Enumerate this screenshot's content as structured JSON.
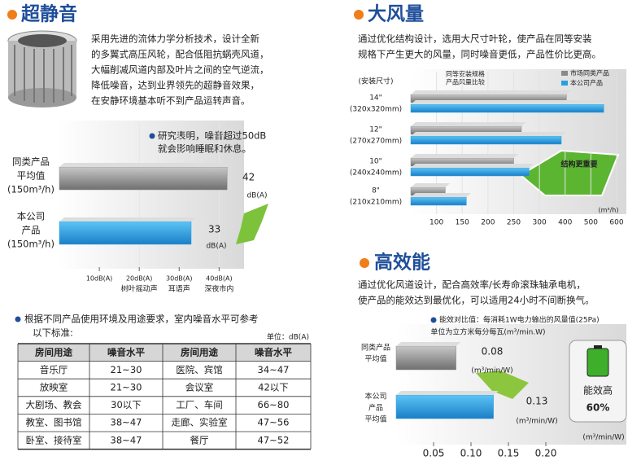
{
  "sections": {
    "quiet": {
      "heading": "超静音",
      "paragraph": [
        "采用先进的流体力学分析技术，设计全新",
        "的多翼式高压风轮，配合低阻抗蜗壳风道，",
        "大幅削减风道内部及叶片之间的空气逆流，",
        "降低噪音，达到业界领先的超静音效果，",
        "在安静环境基本听不到产品运转声音。"
      ]
    },
    "airflow": {
      "heading": "大风量",
      "paragraph": [
        "通过优化结构设计，选用大尺寸叶轮，使产品在同等安装",
        "规格下产生更大的风量，同时噪音更低，产品性价比更高。"
      ]
    },
    "efficiency": {
      "heading": "高效能",
      "paragraph": [
        "通过优化风道设计，配合高效率/长寿命滚珠轴承电机，",
        "使产品的能效达到最优化，可以适用24小时不间断换气。"
      ]
    }
  },
  "noise_table": {
    "intro": [
      "根据不同产品使用环境及用途要求，室内噪音水平可参考",
      "以下标准:"
    ],
    "unit": "单位：dB(A)",
    "header": [
      "房间用途",
      "噪音水平",
      "房间用途",
      "噪音水平"
    ],
    "rows": [
      [
        "音乐厅",
        "21~30",
        "医院、宾馆",
        "34~47"
      ],
      [
        "放映室",
        "21~30",
        "会议室",
        "42以下"
      ],
      [
        "大剧场、教会",
        "30以下",
        "工厂、车间",
        "66~80"
      ],
      [
        "教室、图书馆",
        "38~47",
        "走廊、实验室",
        "47~56"
      ],
      [
        "卧室、接待室",
        "38~47",
        "餐厅",
        "47~52"
      ]
    ]
  },
  "chart_data": [
    {
      "type": "bar",
      "orientation": "horizontal",
      "annotation": [
        "研究表明，噪音超过50dB",
        "就会影响睡眠和休息。"
      ],
      "categories": [
        [
          "同类产品",
          "平均值",
          "(150m³/h)"
        ],
        [
          "本公司",
          "产品",
          "(150m³/h)"
        ]
      ],
      "values": [
        42,
        33
      ],
      "colors": [
        "#8a8a8a",
        "#2a9fe0"
      ],
      "value_unit": "dB(A)",
      "xlim": [
        0,
        44
      ],
      "xticks": [
        {
          "value": 10,
          "label": "10dB(A)"
        },
        {
          "value": 20,
          "label": "20dB(A)"
        },
        {
          "value": 30,
          "label": "30dB(A)"
        },
        {
          "value": 40,
          "label": "40dB(A)"
        }
      ],
      "xtick_notes": [
        {
          "value": 20,
          "label": "树叶摇动声"
        },
        {
          "value": 30,
          "label": "耳语声"
        },
        {
          "value": 40,
          "label": "深夜市内"
        }
      ]
    },
    {
      "type": "bar",
      "orientation": "horizontal",
      "scale": "piecewise",
      "axis_title": "(安装尺寸)",
      "annotation": [
        "同等安装规格",
        "产品风量比较"
      ],
      "callout": "结构更重要",
      "categories": [
        [
          "14\"",
          "(320x320mm)"
        ],
        [
          "12\"",
          "(270x270mm)"
        ],
        [
          "10\"",
          "(240x240mm)"
        ],
        [
          "8\"",
          "(210x210mm)"
        ]
      ],
      "series": [
        {
          "name": "市场同类产品",
          "color": "#8a8a8a",
          "values": [
            405,
            265,
            250,
            117
          ]
        },
        {
          "name": "本公司产品",
          "color": "#2a9fe0",
          "values": [
            550,
            385,
            280,
            158
          ]
        }
      ],
      "xlim": [
        50,
        600
      ],
      "xticks": [
        100,
        150,
        200,
        250,
        300,
        400,
        500,
        600
      ],
      "x_unit": "(m³/h)",
      "legend": "upper right"
    },
    {
      "type": "bar",
      "orientation": "horizontal",
      "annotation": [
        "能效对比值：每消耗1W电力输出的风量值(25Pa)",
        "单位为立方米每分每瓦(m³/min.W)"
      ],
      "categories": [
        [
          "同类产品",
          "平均值"
        ],
        [
          "本公司",
          "产品",
          "平均值"
        ]
      ],
      "values": [
        0.08,
        0.13
      ],
      "colors": [
        "#8a8a8a",
        "#2a9fe0"
      ],
      "value_unit": "(m³/min/W)",
      "xlim": [
        0,
        0.3
      ],
      "xticks": [
        0.05,
        {
          "value": 0.1,
          "label": "0.10"
        },
        0.15,
        {
          "value": 0.2,
          "label": "0.20"
        }
      ],
      "x_unit": "(m³/min/W)",
      "badge": [
        "能效高",
        "60%"
      ]
    }
  ]
}
